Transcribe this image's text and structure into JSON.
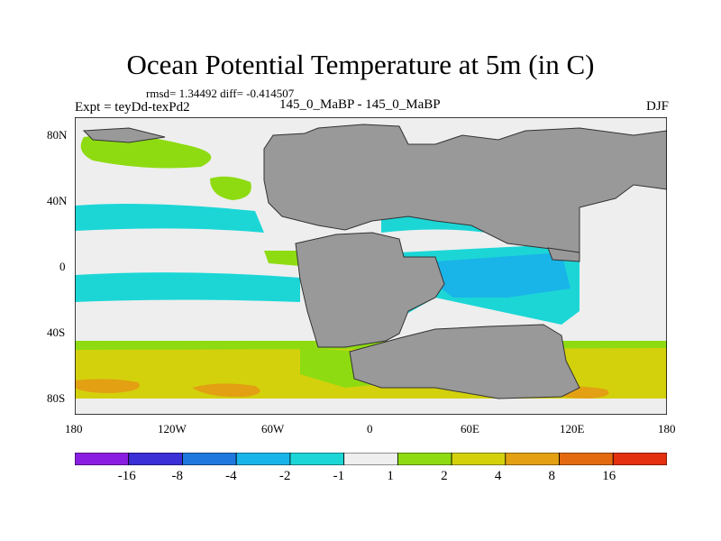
{
  "title": "Ocean Potential Temperature at 5m (in C)",
  "stats": "rmsd= 1.34492 diff= -0.414507",
  "expt": "Expt = teyDd-texPd2",
  "case": "145_0_MaBP - 145_0_MaBP",
  "season": "DJF",
  "lat_ticks": [
    "80N",
    "40N",
    "0",
    "40S",
    "80S"
  ],
  "lon_ticks": [
    "180",
    "120W",
    "60W",
    "0",
    "60E",
    "120E",
    "180"
  ],
  "colorbar": {
    "labels": [
      "-16",
      "-8",
      "-4",
      "-2",
      "-1",
      "1",
      "2",
      "4",
      "8",
      "16"
    ],
    "colors": [
      "#8a1ee0",
      "#3b2fd6",
      "#1f78dc",
      "#19b4e8",
      "#1cd6d6",
      "#eeeeee",
      "#8edb12",
      "#d3d10c",
      "#e3a012",
      "#e36a10",
      "#e3300e"
    ]
  },
  "colors": {
    "land": "#999999",
    "neutral": "#eeeeee",
    "cyan": "#1cd6d6",
    "blue": "#19b4e8",
    "green": "#8edb12",
    "yellow": "#d3d10c",
    "orange": "#e3a012"
  }
}
